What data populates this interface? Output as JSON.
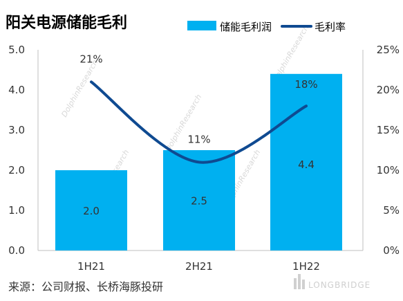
{
  "chart_data": {
    "type": "bar+line",
    "title": "阳关电源储能毛利",
    "categories": [
      "1H21",
      "2H21",
      "1H22"
    ],
    "series": [
      {
        "name": "储能毛利润",
        "type": "bar",
        "axis": "left",
        "values": [
          2.0,
          2.5,
          4.4
        ],
        "labels": [
          "2.0",
          "2.5",
          "4.4"
        ],
        "color": "#00B0F0"
      },
      {
        "name": "毛利率",
        "type": "line",
        "axis": "right",
        "values": [
          21,
          11,
          18
        ],
        "labels": [
          "21%",
          "11%",
          "18%"
        ],
        "color": "#0F4A91"
      }
    ],
    "y_left": {
      "min": 0,
      "max": 5,
      "step": 1,
      "ticks": [
        "0.0",
        "1.0",
        "2.0",
        "3.0",
        "4.0",
        "5.0"
      ]
    },
    "y_right": {
      "min": 0,
      "max": 25,
      "step": 5,
      "ticks": [
        "0%",
        "5%",
        "10%",
        "15%",
        "20%",
        "25%"
      ]
    },
    "grid": false,
    "legend_position": "top-right"
  },
  "source": "来源：公司财报、长桥海豚投研",
  "watermark": {
    "brand": "LONGBRIDGE",
    "research": "DolphinResearch"
  }
}
